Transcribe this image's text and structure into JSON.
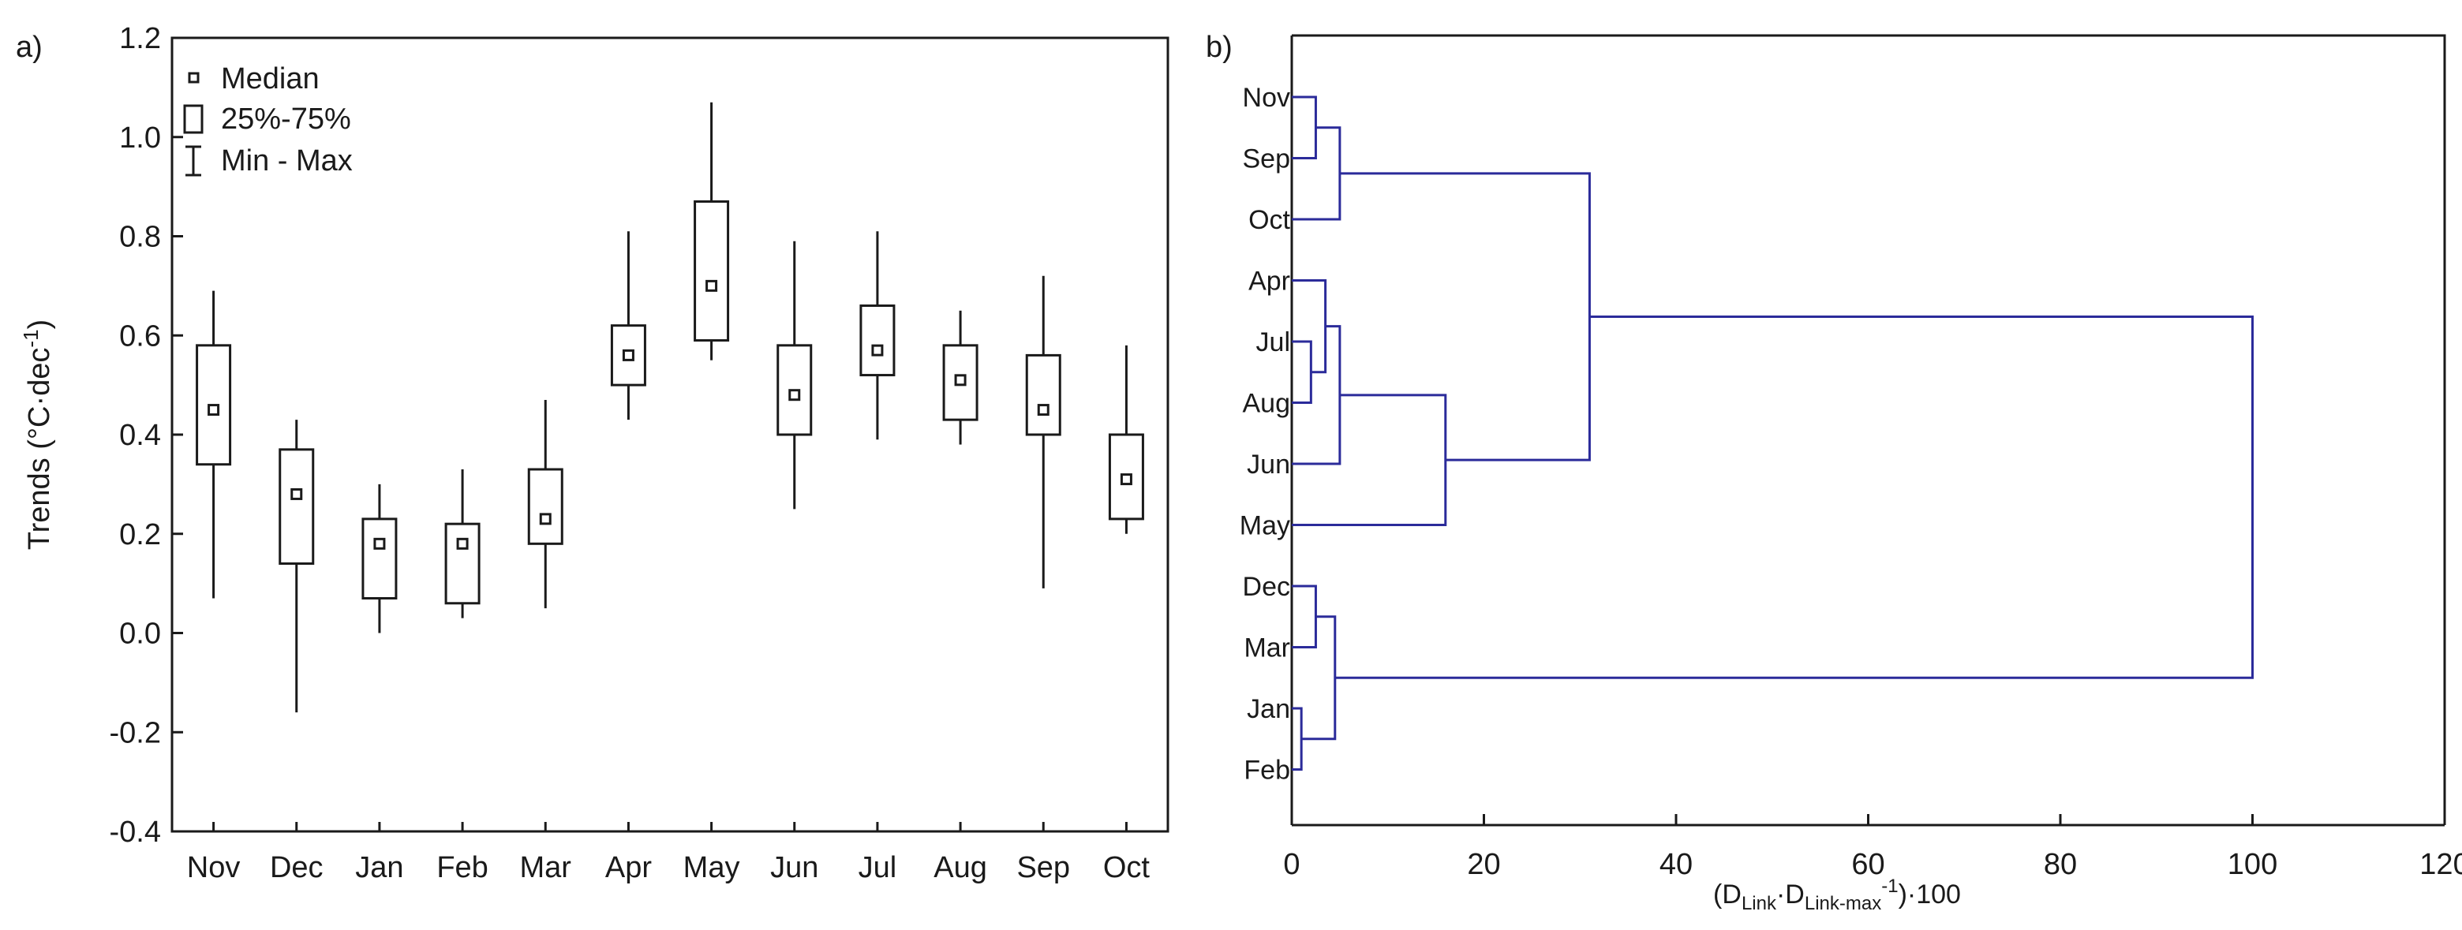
{
  "chart_data": [
    {
      "type": "boxplot",
      "panel_label": "a)",
      "ylabel": "Trends (°C·dec",
      "ylabel_sup": "-1",
      "ylabel_close": ")",
      "ylim": [
        -0.4,
        1.2
      ],
      "yticks": [
        "-0.4",
        "-0.2",
        "0.0",
        "0.2",
        "0.4",
        "0.6",
        "0.8",
        "1.0",
        "1.2"
      ],
      "ytick_values": [
        -0.4,
        -0.2,
        0.0,
        0.2,
        0.4,
        0.6,
        0.8,
        1.0,
        1.2
      ],
      "legend": [
        "Median",
        "25%-75%",
        "Min - Max"
      ],
      "categories": [
        "Nov",
        "Dec",
        "Jan",
        "Feb",
        "Mar",
        "Apr",
        "May",
        "Jun",
        "Jul",
        "Aug",
        "Sep",
        "Oct"
      ],
      "boxes": [
        {
          "min": 0.07,
          "q1": 0.34,
          "median": 0.45,
          "q3": 0.58,
          "max": 0.69
        },
        {
          "min": -0.16,
          "q1": 0.14,
          "median": 0.28,
          "q3": 0.37,
          "max": 0.43
        },
        {
          "min": 0.0,
          "q1": 0.07,
          "median": 0.18,
          "q3": 0.23,
          "max": 0.3
        },
        {
          "min": 0.03,
          "q1": 0.06,
          "median": 0.18,
          "q3": 0.22,
          "max": 0.33
        },
        {
          "min": 0.05,
          "q1": 0.18,
          "median": 0.23,
          "q3": 0.33,
          "max": 0.47
        },
        {
          "min": 0.43,
          "q1": 0.5,
          "median": 0.56,
          "q3": 0.62,
          "max": 0.81
        },
        {
          "min": 0.55,
          "q1": 0.59,
          "median": 0.7,
          "q3": 0.87,
          "max": 1.07
        },
        {
          "min": 0.25,
          "q1": 0.4,
          "median": 0.48,
          "q3": 0.58,
          "max": 0.79
        },
        {
          "min": 0.39,
          "q1": 0.52,
          "median": 0.57,
          "q3": 0.66,
          "max": 0.81
        },
        {
          "min": 0.38,
          "q1": 0.43,
          "median": 0.51,
          "q3": 0.58,
          "max": 0.65
        },
        {
          "min": 0.09,
          "q1": 0.4,
          "median": 0.45,
          "q3": 0.56,
          "max": 0.72
        },
        {
          "min": 0.2,
          "q1": 0.23,
          "median": 0.31,
          "q3": 0.4,
          "max": 0.58
        }
      ]
    },
    {
      "type": "dendrogram",
      "panel_label": "b)",
      "xlabel_parts": [
        "(D",
        "Link",
        "·D",
        "Link-max",
        "-1",
        ")·100"
      ],
      "xlim": [
        0,
        120
      ],
      "xticks": [
        "0",
        "20",
        "40",
        "60",
        "80",
        "100",
        "120"
      ],
      "xtick_values": [
        0,
        20,
        40,
        60,
        80,
        100,
        120
      ],
      "leaves": [
        "Nov",
        "Sep",
        "Oct",
        "Apr",
        "Jul",
        "Aug",
        "Jun",
        "May",
        "Dec",
        "Mar",
        "Jan",
        "Feb"
      ],
      "merges": [
        {
          "a": "Jan",
          "b": "Feb",
          "height": 1
        },
        {
          "a": "Jul",
          "b": "Aug",
          "height": 2
        },
        {
          "a": "Nov",
          "b": "Sep",
          "height": 2.5
        },
        {
          "a": "Dec",
          "b": "Mar",
          "height": 2.5
        },
        {
          "a": "Apr",
          "b": "Jul+Aug",
          "height": 3.5
        },
        {
          "a": "Nov+Sep",
          "b": "Oct",
          "height": 5
        },
        {
          "a": "Apr+Jul+Aug",
          "b": "Jun",
          "height": 5
        },
        {
          "a": "Dec+Mar",
          "b": "Jan+Feb",
          "height": 4.5
        },
        {
          "a": "Apr+Jul+Aug+Jun",
          "b": "May",
          "height": 16
        },
        {
          "a": "Nov+Sep+Oct",
          "b": "Apr+Jul+Aug+Jun+May",
          "height": 31
        },
        {
          "a": "Nov+Sep+Oct+Apr+Jul+Aug+Jun+May",
          "b": "Dec+Mar+Jan+Feb",
          "height": 100
        }
      ]
    }
  ],
  "colors": {
    "axis": "#1a1a1a",
    "dendrogram": "#2b2b9a"
  }
}
